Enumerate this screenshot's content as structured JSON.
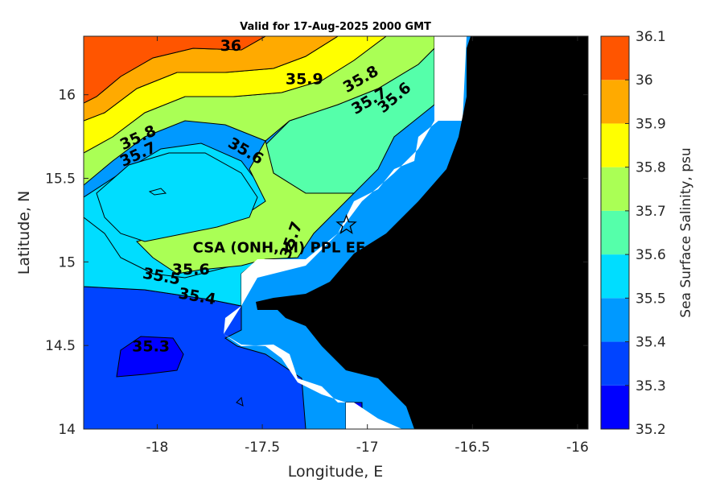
{
  "chart_data": {
    "type": "heatmap",
    "title": "Valid for 17-Aug-2025 2000 GMT",
    "xlabel": "Longitude, E",
    "ylabel": "Latitude, N",
    "xlim": [
      -18.35,
      -15.95
    ],
    "ylim": [
      14.0,
      16.35
    ],
    "xticks": [
      -18,
      -17.5,
      -17,
      -16.5,
      -16
    ],
    "xtick_labels": [
      "-18",
      "-17.5",
      "-17",
      "-16.5",
      "-16"
    ],
    "yticks": [
      14,
      14.5,
      15,
      15.5,
      16
    ],
    "ytick_labels": [
      "14",
      "14.5",
      "15",
      "15.5",
      "16"
    ],
    "colorbar": {
      "label": "Sea Surface Salinity, psu",
      "levels": [
        35.2,
        35.3,
        35.4,
        35.5,
        35.6,
        35.7,
        35.8,
        35.9,
        36.0,
        36.1
      ],
      "tick_labels": [
        "35.2",
        "35.3",
        "35.4",
        "35.5",
        "35.6",
        "35.7",
        "35.8",
        "35.9",
        "36",
        "36.1"
      ],
      "colors": [
        "#0000ff",
        "#0044ff",
        "#0099ff",
        "#00ddff",
        "#55ffaa",
        "#aaff55",
        "#ffff00",
        "#ffaa00",
        "#ff5500"
      ]
    },
    "contour_labels": [
      {
        "text": "36",
        "lon": -17.65,
        "lat": 16.29,
        "angle": 0
      },
      {
        "text": "35.9",
        "lon": -17.3,
        "lat": 16.09,
        "angle": 0
      },
      {
        "text": "35.8",
        "lon": -17.03,
        "lat": 16.09,
        "angle": -30
      },
      {
        "text": "35.7",
        "lon": -16.99,
        "lat": 15.96,
        "angle": -30
      },
      {
        "text": "35.6",
        "lon": -16.87,
        "lat": 15.98,
        "angle": -40
      },
      {
        "text": "35.8",
        "lon": -18.09,
        "lat": 15.74,
        "angle": -25
      },
      {
        "text": "35.7",
        "lon": -18.09,
        "lat": 15.64,
        "angle": -25
      },
      {
        "text": "35.6",
        "lon": -17.58,
        "lat": 15.66,
        "angle": 30
      },
      {
        "text": "35.7",
        "lon": -17.36,
        "lat": 15.13,
        "angle": -70
      },
      {
        "text": "35.6",
        "lon": -17.84,
        "lat": 14.95,
        "angle": 0
      },
      {
        "text": "35.5",
        "lon": -17.98,
        "lat": 14.91,
        "angle": 10
      },
      {
        "text": "35.4",
        "lon": -17.81,
        "lat": 14.79,
        "angle": 10
      },
      {
        "text": "35.3",
        "lon": -18.03,
        "lat": 14.49,
        "angle": 0
      }
    ],
    "marker": {
      "symbol": "star",
      "lon": -17.1,
      "lat": 15.22
    },
    "station_label": {
      "text": "CSA (ONH, M) PPL EE",
      "lon": -17.42,
      "lat": 15.08
    }
  }
}
